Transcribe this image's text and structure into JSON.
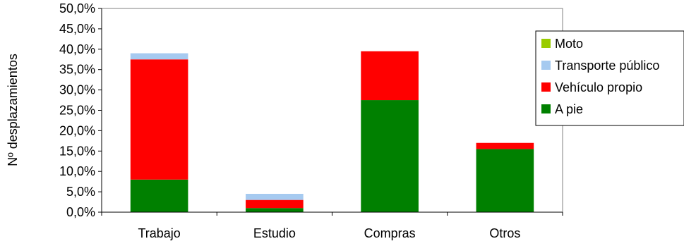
{
  "chart_data": {
    "type": "bar",
    "stacked": true,
    "categories": [
      "Trabajo",
      "Estudio",
      "Compras",
      "Otros"
    ],
    "series": [
      {
        "name": "A pie",
        "color": "#008000",
        "values": [
          8.0,
          1.0,
          27.5,
          15.5
        ]
      },
      {
        "name": "Vehículo propio",
        "color": "#ff0000",
        "values": [
          29.5,
          2.0,
          12.0,
          1.5
        ]
      },
      {
        "name": "Transporte público",
        "color": "#a6caf0",
        "values": [
          1.5,
          1.5,
          0.0,
          0.0
        ]
      },
      {
        "name": "Moto",
        "color": "#99cc00",
        "values": [
          0.0,
          0.0,
          0.0,
          0.0
        ]
      }
    ],
    "ylabel": "Nº desplazamientos",
    "xlabel": "",
    "ylim": [
      0,
      50
    ],
    "yticks": [
      "0,0%",
      "5,0%",
      "10,0%",
      "15,0%",
      "20,0%",
      "25,0%",
      "30,0%",
      "35,0%",
      "40,0%",
      "45,0%",
      "50,0%"
    ],
    "legend_position": "right",
    "grid": false
  }
}
